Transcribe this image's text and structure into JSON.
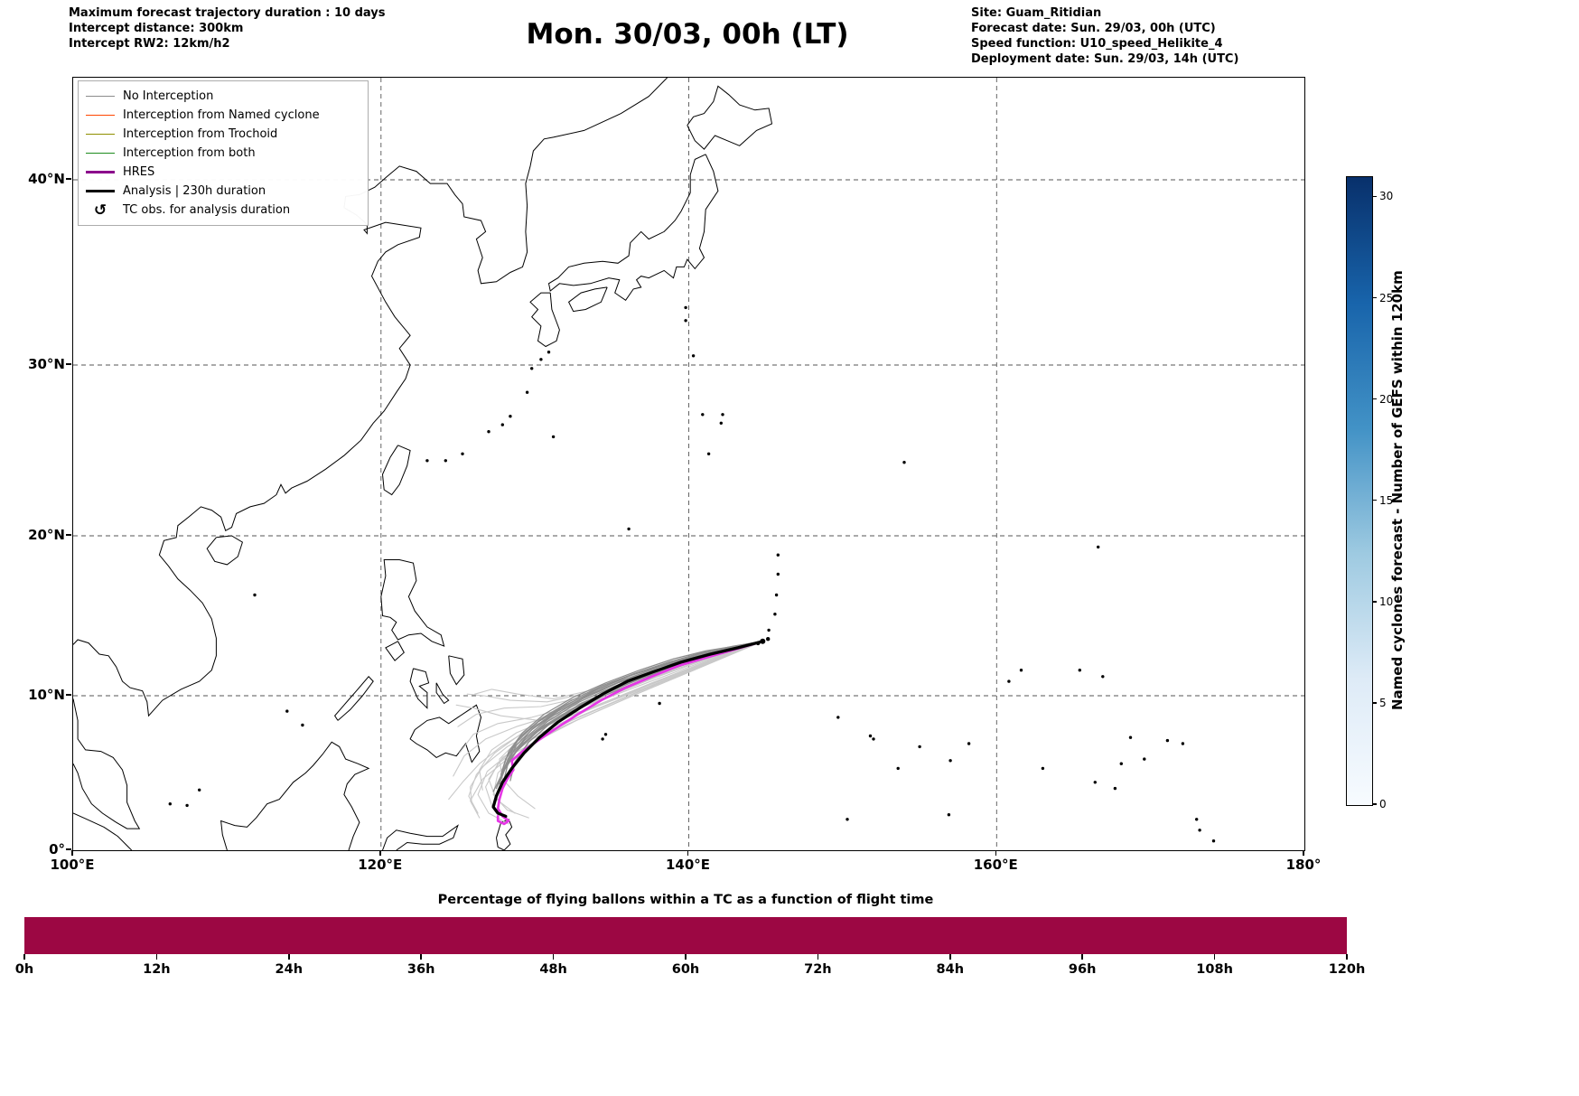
{
  "header": {
    "left_lines": [
      "Maximum forecast trajectory duration : 10 days",
      "Intercept distance: 300km",
      "Intercept RW2: 12km/h2"
    ],
    "title": "Mon. 30/03, 00h (LT)",
    "right_lines": [
      "Site: Guam_Ritidian",
      "Forecast date: Sun. 29/03, 00h (UTC)",
      "Speed function: U10_speed_Helikite_4",
      "Deployment date: Sun. 29/03, 14h (UTC)"
    ]
  },
  "legend": {
    "items": [
      {
        "label": "No Interception",
        "color": "#8c8c8c",
        "lw": 1.5
      },
      {
        "label": "Interception from Named cyclone",
        "color": "#ff4500",
        "lw": 1.5
      },
      {
        "label": "Interception from Trochoid",
        "color": "#8f8f00",
        "lw": 1.5
      },
      {
        "label": "Interception from both",
        "color": "#1e8c1e",
        "lw": 1.5
      },
      {
        "label": "HRES",
        "color": "#8b008b",
        "lw": 3.2
      },
      {
        "label": "Analysis | 230h duration",
        "color": "#000000",
        "lw": 3.2
      },
      {
        "label": "TC obs. for analysis duration",
        "symbol": "↺"
      }
    ]
  },
  "map_axes": {
    "x_tick_labels": [
      "100°E",
      "120°E",
      "140°E",
      "160°E",
      "180°"
    ],
    "x_tick_lons": [
      100,
      120,
      140,
      160,
      180
    ],
    "y_tick_labels": [
      "0°",
      "10°N",
      "20°N",
      "30°N",
      "40°N"
    ],
    "y_tick_lats": [
      0,
      10,
      20,
      30,
      40
    ],
    "grid_lons": [
      120,
      140,
      160
    ],
    "grid_lats": [
      10,
      20,
      30,
      40
    ]
  },
  "colorbar": {
    "label": "Named cyclones forecast - Number of GEFS within 120km",
    "tick_values": [
      30,
      25,
      20,
      15,
      10,
      5,
      0
    ],
    "min": 0,
    "max": 31,
    "colors_top_to_bottom": [
      "#08306b",
      "#1864ab",
      "#4292c6",
      "#9ecae1",
      "#deebf7",
      "#f7fbff"
    ]
  },
  "bottom_bar": {
    "caption": "Percentage of flying ballons within a TC as a function of flight time",
    "tick_labels": [
      "0h",
      "12h",
      "24h",
      "36h",
      "48h",
      "60h",
      "72h",
      "84h",
      "96h",
      "108h",
      "120h"
    ],
    "bar_color": "#9c0743",
    "value_percent": 100
  },
  "chart_data": {
    "type": "line",
    "title": "Mon. 30/03, 00h (LT)",
    "xlabel": "",
    "ylabel": "",
    "xlim": [
      100,
      180
    ],
    "ylim": [
      0,
      46
    ],
    "legend_position": "upper-left",
    "grid": true,
    "start_point": {
      "lon": 144.8,
      "lat": 13.4,
      "name": "Guam_Ritidian"
    },
    "series_note": "Gray curves: GEFS ensemble balloon trajectories (No Interception); black: Analysis; magenta: HRES",
    "series": [
      {
        "id": "GEFS-L01",
        "color": "#c9c9c9",
        "width": 1.1,
        "lonlat": [
          144.8,
          13.4,
          141.8,
          12.6,
          138.6,
          11.6,
          135.4,
          10.4,
          132.4,
          9.3,
          129.8,
          8.6,
          127.6,
          8.2,
          126.0,
          7.5,
          125.1,
          6.3
        ]
      },
      {
        "id": "GEFS-L02",
        "color": "#c9c9c9",
        "width": 1.1,
        "lonlat": [
          144.8,
          13.4,
          141.5,
          12.4,
          138.0,
          11.2,
          134.6,
          9.9,
          131.4,
          8.8,
          128.8,
          8.0,
          126.8,
          7.2,
          125.4,
          6.1,
          124.7,
          4.8
        ]
      },
      {
        "id": "GEFS-L03",
        "color": "#c9c9c9",
        "width": 1.1,
        "lonlat": [
          144.8,
          13.4,
          141.2,
          12.1,
          137.4,
          10.7,
          133.8,
          9.3,
          130.6,
          8.0,
          128.2,
          6.7,
          126.6,
          5.4,
          125.8,
          4.1,
          125.9,
          3.0
        ]
      },
      {
        "id": "GEFS-L04",
        "color": "#c9c9c9",
        "width": 1.1,
        "lonlat": [
          144.8,
          13.4,
          141.9,
          12.7,
          139.0,
          11.8,
          136.0,
          10.8,
          133.1,
          9.9,
          130.4,
          9.3,
          128.0,
          9.2,
          126.2,
          8.8,
          125.0,
          8.0
        ]
      },
      {
        "id": "GEFS-L05",
        "color": "#c9c9c9",
        "width": 1.1,
        "lonlat": [
          144.8,
          13.4,
          141.4,
          12.3,
          137.8,
          11.0,
          134.3,
          9.7,
          131.2,
          8.6,
          128.8,
          7.6,
          127.2,
          6.5,
          126.4,
          5.2,
          126.6,
          3.9
        ]
      },
      {
        "id": "GEFS-L06",
        "color": "#c9c9c9",
        "width": 1.1,
        "lonlat": [
          144.8,
          13.4,
          140.9,
          11.9,
          136.8,
          10.3,
          133.0,
          8.7,
          129.8,
          7.2,
          127.6,
          5.6,
          126.8,
          4.1,
          127.2,
          2.9,
          128.2,
          2.1
        ]
      },
      {
        "id": "GEFS-L07",
        "color": "#c9c9c9",
        "width": 1.1,
        "lonlat": [
          144.8,
          13.4,
          141.0,
          12.0,
          137.0,
          10.5,
          133.3,
          9.0,
          130.2,
          7.5,
          127.9,
          6.0,
          127.0,
          4.6,
          127.5,
          3.3,
          128.7,
          2.4
        ]
      },
      {
        "id": "GEFS-L08",
        "color": "#c9c9c9",
        "width": 1.1,
        "lonlat": [
          144.8,
          13.4,
          142.0,
          12.8,
          139.2,
          12.0,
          136.3,
          11.1,
          133.5,
          10.2,
          130.8,
          9.6,
          128.4,
          9.7,
          126.7,
          10.0,
          125.6,
          10.1
        ]
      },
      {
        "id": "GEFS-L09",
        "color": "#c9c9c9",
        "width": 1.1,
        "lonlat": [
          144.8,
          13.4,
          141.6,
          12.5,
          138.2,
          11.3,
          134.9,
          10.0,
          131.8,
          8.8,
          129.2,
          7.6,
          127.4,
          6.3,
          126.2,
          4.9,
          125.7,
          3.5,
          126.3,
          2.4
        ]
      },
      {
        "id": "GEFS-L10",
        "color": "#c9c9c9",
        "width": 1.1,
        "lonlat": [
          144.8,
          13.4,
          140.7,
          11.8,
          136.4,
          10.1,
          132.4,
          8.4,
          129.0,
          6.8,
          126.9,
          5.1,
          126.3,
          3.6,
          127.0,
          2.4,
          128.3,
          1.7
        ]
      },
      {
        "id": "GEFS-L11",
        "color": "#c9c9c9",
        "width": 1.1,
        "lonlat": [
          144.8,
          13.4,
          141.3,
          12.2,
          137.6,
          10.8,
          134.1,
          9.4,
          131.1,
          8.2,
          128.9,
          7.1,
          127.7,
          5.9,
          127.9,
          4.6,
          128.9,
          3.5,
          130.0,
          2.7
        ]
      },
      {
        "id": "GEFS-L12",
        "color": "#c9c9c9",
        "width": 1.1,
        "lonlat": [
          144.8,
          13.4,
          141.7,
          12.5,
          138.4,
          11.4,
          135.1,
          10.1,
          132.1,
          8.9,
          129.6,
          7.8,
          127.8,
          6.7,
          126.4,
          5.6,
          125.3,
          4.4,
          124.4,
          3.3
        ]
      },
      {
        "id": "GEFS-L13",
        "color": "#c9c9c9",
        "width": 1.1,
        "lonlat": [
          144.8,
          13.4,
          140.8,
          11.8,
          136.6,
          10.1,
          132.7,
          8.4,
          129.4,
          6.7,
          127.6,
          5.0,
          127.3,
          3.6,
          128.2,
          2.6,
          129.6,
          2.1
        ]
      },
      {
        "id": "GEFS-L14",
        "color": "#c9c9c9",
        "width": 1.1,
        "lonlat": [
          144.8,
          13.4,
          142.1,
          12.9,
          139.4,
          12.1,
          136.6,
          11.3,
          133.9,
          10.4,
          131.2,
          9.8,
          128.9,
          10.1,
          127.2,
          10.4,
          126.1,
          10.1
        ]
      },
      {
        "id": "GEFS-L15",
        "color": "#c9c9c9",
        "width": 1.1,
        "lonlat": [
          144.8,
          13.4,
          141.1,
          12.0,
          137.2,
          10.5,
          133.5,
          9.1,
          130.3,
          8.4,
          127.8,
          8.7,
          126.0,
          9.2,
          124.9,
          9.4
        ]
      },
      {
        "id": "GEFS-L16",
        "color": "#c9c9c9",
        "width": 1.1,
        "lonlat": [
          144.8,
          13.4,
          140.6,
          11.7,
          136.1,
          9.9,
          132.0,
          8.1,
          128.7,
          6.3,
          126.6,
          4.6,
          125.8,
          3.2,
          126.4,
          2.1
        ]
      },
      {
        "id": "GEFS-D01",
        "color": "#8e8e8e",
        "width": 1.3,
        "lonlat": [
          144.8,
          13.4,
          142.6,
          12.9,
          140.2,
          12.3,
          137.8,
          11.6,
          135.4,
          10.8,
          133.1,
          9.8,
          131.0,
          8.6,
          129.4,
          7.3,
          128.3,
          6.0,
          127.8,
          4.8
        ]
      },
      {
        "id": "GEFS-D02",
        "color": "#8e8e8e",
        "width": 1.3,
        "lonlat": [
          144.8,
          13.4,
          142.8,
          13.0,
          140.6,
          12.5,
          138.3,
          11.9,
          136.0,
          11.2,
          133.8,
          10.3,
          131.7,
          9.2,
          130.0,
          8.0,
          128.8,
          6.8,
          128.2,
          5.6
        ]
      },
      {
        "id": "GEFS-D03",
        "color": "#8e8e8e",
        "width": 1.3,
        "lonlat": [
          144.8,
          13.4,
          142.4,
          12.8,
          139.9,
          12.1,
          137.4,
          11.3,
          135.0,
          10.4,
          132.7,
          9.3,
          130.7,
          8.1,
          129.1,
          6.8,
          128.1,
          5.5,
          127.6,
          4.2
        ]
      },
      {
        "id": "GEFS-D04",
        "color": "#8e8e8e",
        "width": 1.3,
        "lonlat": [
          144.8,
          13.4,
          142.9,
          13.1,
          140.9,
          12.7,
          138.7,
          12.1,
          136.5,
          11.4,
          134.3,
          10.6,
          132.2,
          9.6,
          130.4,
          8.5,
          129.0,
          7.3,
          128.2,
          6.1
        ]
      },
      {
        "id": "GEFS-D05",
        "color": "#8e8e8e",
        "width": 1.3,
        "lonlat": [
          144.8,
          13.4,
          142.5,
          12.9,
          140.0,
          12.2,
          137.6,
          11.5,
          135.2,
          10.6,
          132.9,
          9.6,
          130.9,
          8.4,
          129.3,
          7.1,
          128.3,
          5.8,
          128.0,
          4.6
        ]
      },
      {
        "id": "GEFS-D06",
        "color": "#8e8e8e",
        "width": 1.3,
        "lonlat": [
          144.8,
          13.4,
          142.7,
          13.0,
          140.4,
          12.4,
          138.1,
          11.8,
          135.8,
          11.0,
          133.6,
          10.1,
          131.5,
          9.0,
          129.8,
          7.8,
          128.6,
          6.6,
          128.0,
          5.3
        ]
      },
      {
        "id": "GEFS-D07",
        "color": "#8e8e8e",
        "width": 1.3,
        "lonlat": [
          144.8,
          13.4,
          142.3,
          12.7,
          139.7,
          12.0,
          137.2,
          11.2,
          134.7,
          10.2,
          132.4,
          9.1,
          130.4,
          7.9,
          128.9,
          6.6,
          128.0,
          5.2,
          127.5,
          4.0
        ]
      },
      {
        "id": "GEFS-D08",
        "color": "#8e8e8e",
        "width": 1.3,
        "lonlat": [
          144.8,
          13.4,
          143.0,
          13.1,
          141.1,
          12.8,
          139.0,
          12.3,
          136.8,
          11.6,
          134.6,
          10.8,
          132.5,
          9.9,
          130.6,
          8.8,
          129.2,
          7.6,
          128.3,
          6.4,
          127.9,
          5.2
        ]
      },
      {
        "id": "GEFS-D09",
        "color": "#8e8e8e",
        "width": 1.3,
        "lonlat": [
          144.8,
          13.4,
          142.5,
          12.8,
          140.1,
          12.2,
          137.7,
          11.4,
          135.3,
          10.5,
          133.0,
          9.5,
          131.1,
          8.3,
          129.6,
          7.0,
          128.7,
          5.7,
          128.4,
          4.5
        ]
      },
      {
        "id": "GEFS-D10",
        "color": "#8e8e8e",
        "width": 1.3,
        "lonlat": [
          144.8,
          13.4,
          142.2,
          12.7,
          139.6,
          11.9,
          137.0,
          11.0,
          134.5,
          10.0,
          132.2,
          8.9,
          130.2,
          7.7,
          128.8,
          6.4,
          127.9,
          5.0,
          127.3,
          3.8
        ]
      },
      {
        "id": "GEFS-D11",
        "color": "#8e8e8e",
        "width": 1.3,
        "lonlat": [
          144.8,
          13.4,
          142.8,
          13.0,
          140.7,
          12.6,
          138.5,
          12.0,
          136.3,
          11.3,
          134.1,
          10.4,
          132.0,
          9.4,
          130.2,
          8.3,
          128.9,
          7.1,
          128.1,
          5.9,
          127.8,
          4.9
        ]
      },
      {
        "id": "GEFS-D12",
        "color": "#8e8e8e",
        "width": 1.3,
        "lonlat": [
          144.8,
          13.4,
          142.4,
          12.8,
          139.8,
          12.0,
          137.3,
          11.2,
          134.8,
          10.3,
          132.5,
          9.2,
          130.5,
          8.0,
          129.0,
          6.7,
          128.1,
          5.4,
          127.7,
          4.3
        ]
      },
      {
        "id": "HRES",
        "label": "HRES",
        "color": "#e637e6",
        "width": 2.7,
        "lonlat": [
          144.8,
          13.4,
          143.0,
          12.9,
          141.2,
          12.4,
          139.4,
          11.9,
          137.6,
          11.2,
          135.9,
          10.5,
          134.3,
          9.7,
          132.8,
          8.8,
          131.4,
          7.9,
          130.2,
          7.1,
          129.2,
          6.4,
          128.5,
          5.8,
          128.6,
          5.2,
          128.2,
          4.6,
          127.9,
          4.0,
          127.7,
          3.3,
          127.6,
          2.7,
          127.9,
          2.2,
          128.3,
          1.9,
          128.0,
          1.7,
          127.6,
          1.9,
          127.6,
          2.2
        ]
      },
      {
        "id": "Analysis",
        "label": "Analysis | 230h duration",
        "color": "#000000",
        "width": 3.3,
        "lonlat": [
          144.8,
          13.4,
          143.2,
          13.0,
          141.4,
          12.6,
          139.5,
          12.1,
          137.7,
          11.5,
          136.0,
          10.9,
          134.4,
          10.1,
          132.9,
          9.2,
          131.5,
          8.3,
          130.3,
          7.3,
          129.3,
          6.3,
          128.5,
          5.3,
          127.9,
          4.4,
          127.5,
          3.5,
          127.3,
          2.8,
          127.6,
          2.4,
          128.1,
          2.2
        ]
      }
    ],
    "balloon_percentage": {
      "x_hours": [
        0,
        120
      ],
      "percent": [
        100,
        100
      ]
    }
  }
}
